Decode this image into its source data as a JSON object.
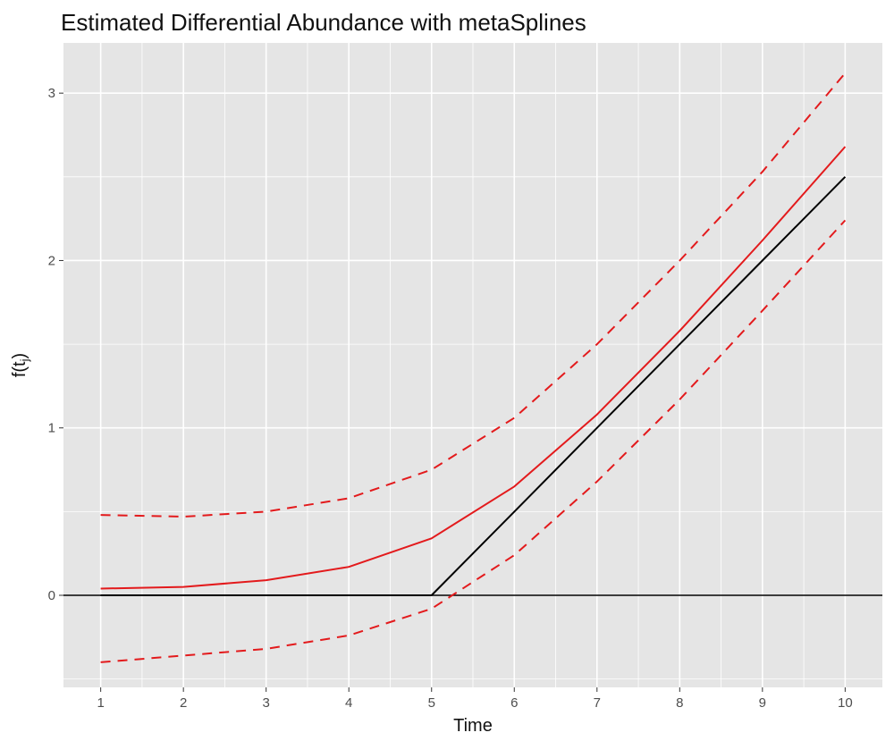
{
  "chart_data": {
    "type": "line",
    "title": "Estimated Differential Abundance with metaSplines",
    "xlabel": "Time",
    "ylabel_base": "f(t",
    "ylabel_sub": "j",
    "ylabel_close": ")",
    "xlim": [
      0.55,
      10.45
    ],
    "ylim": [
      -0.55,
      3.3
    ],
    "x_ticks": [
      1,
      2,
      3,
      4,
      5,
      6,
      7,
      8,
      9,
      10
    ],
    "y_ticks": [
      0,
      1,
      2,
      3
    ],
    "x": [
      1,
      2,
      3,
      4,
      5,
      6,
      7,
      8,
      9,
      10
    ],
    "series": [
      {
        "role": "estimate",
        "color": "#e31a1c",
        "dash": "solid",
        "values": [
          0.04,
          0.05,
          0.09,
          0.17,
          0.34,
          0.65,
          1.08,
          1.58,
          2.12,
          2.68
        ]
      },
      {
        "role": "upper-bound",
        "color": "#e31a1c",
        "dash": "dashed",
        "values": [
          0.48,
          0.47,
          0.5,
          0.58,
          0.75,
          1.06,
          1.5,
          2.0,
          2.53,
          3.12
        ]
      },
      {
        "role": "lower-bound",
        "color": "#e31a1c",
        "dash": "dashed",
        "values": [
          -0.4,
          -0.36,
          -0.32,
          -0.24,
          -0.08,
          0.24,
          0.68,
          1.17,
          1.7,
          2.24
        ]
      },
      {
        "role": "true-function",
        "color": "#000000",
        "dash": "solid",
        "values": [
          0,
          0,
          0,
          0,
          0,
          0.5,
          1.0,
          1.5,
          2.0,
          2.5
        ]
      }
    ],
    "hline": 0,
    "grid": true,
    "panel_background": "#e5e5e5",
    "gridline_color": "#ffffff"
  }
}
